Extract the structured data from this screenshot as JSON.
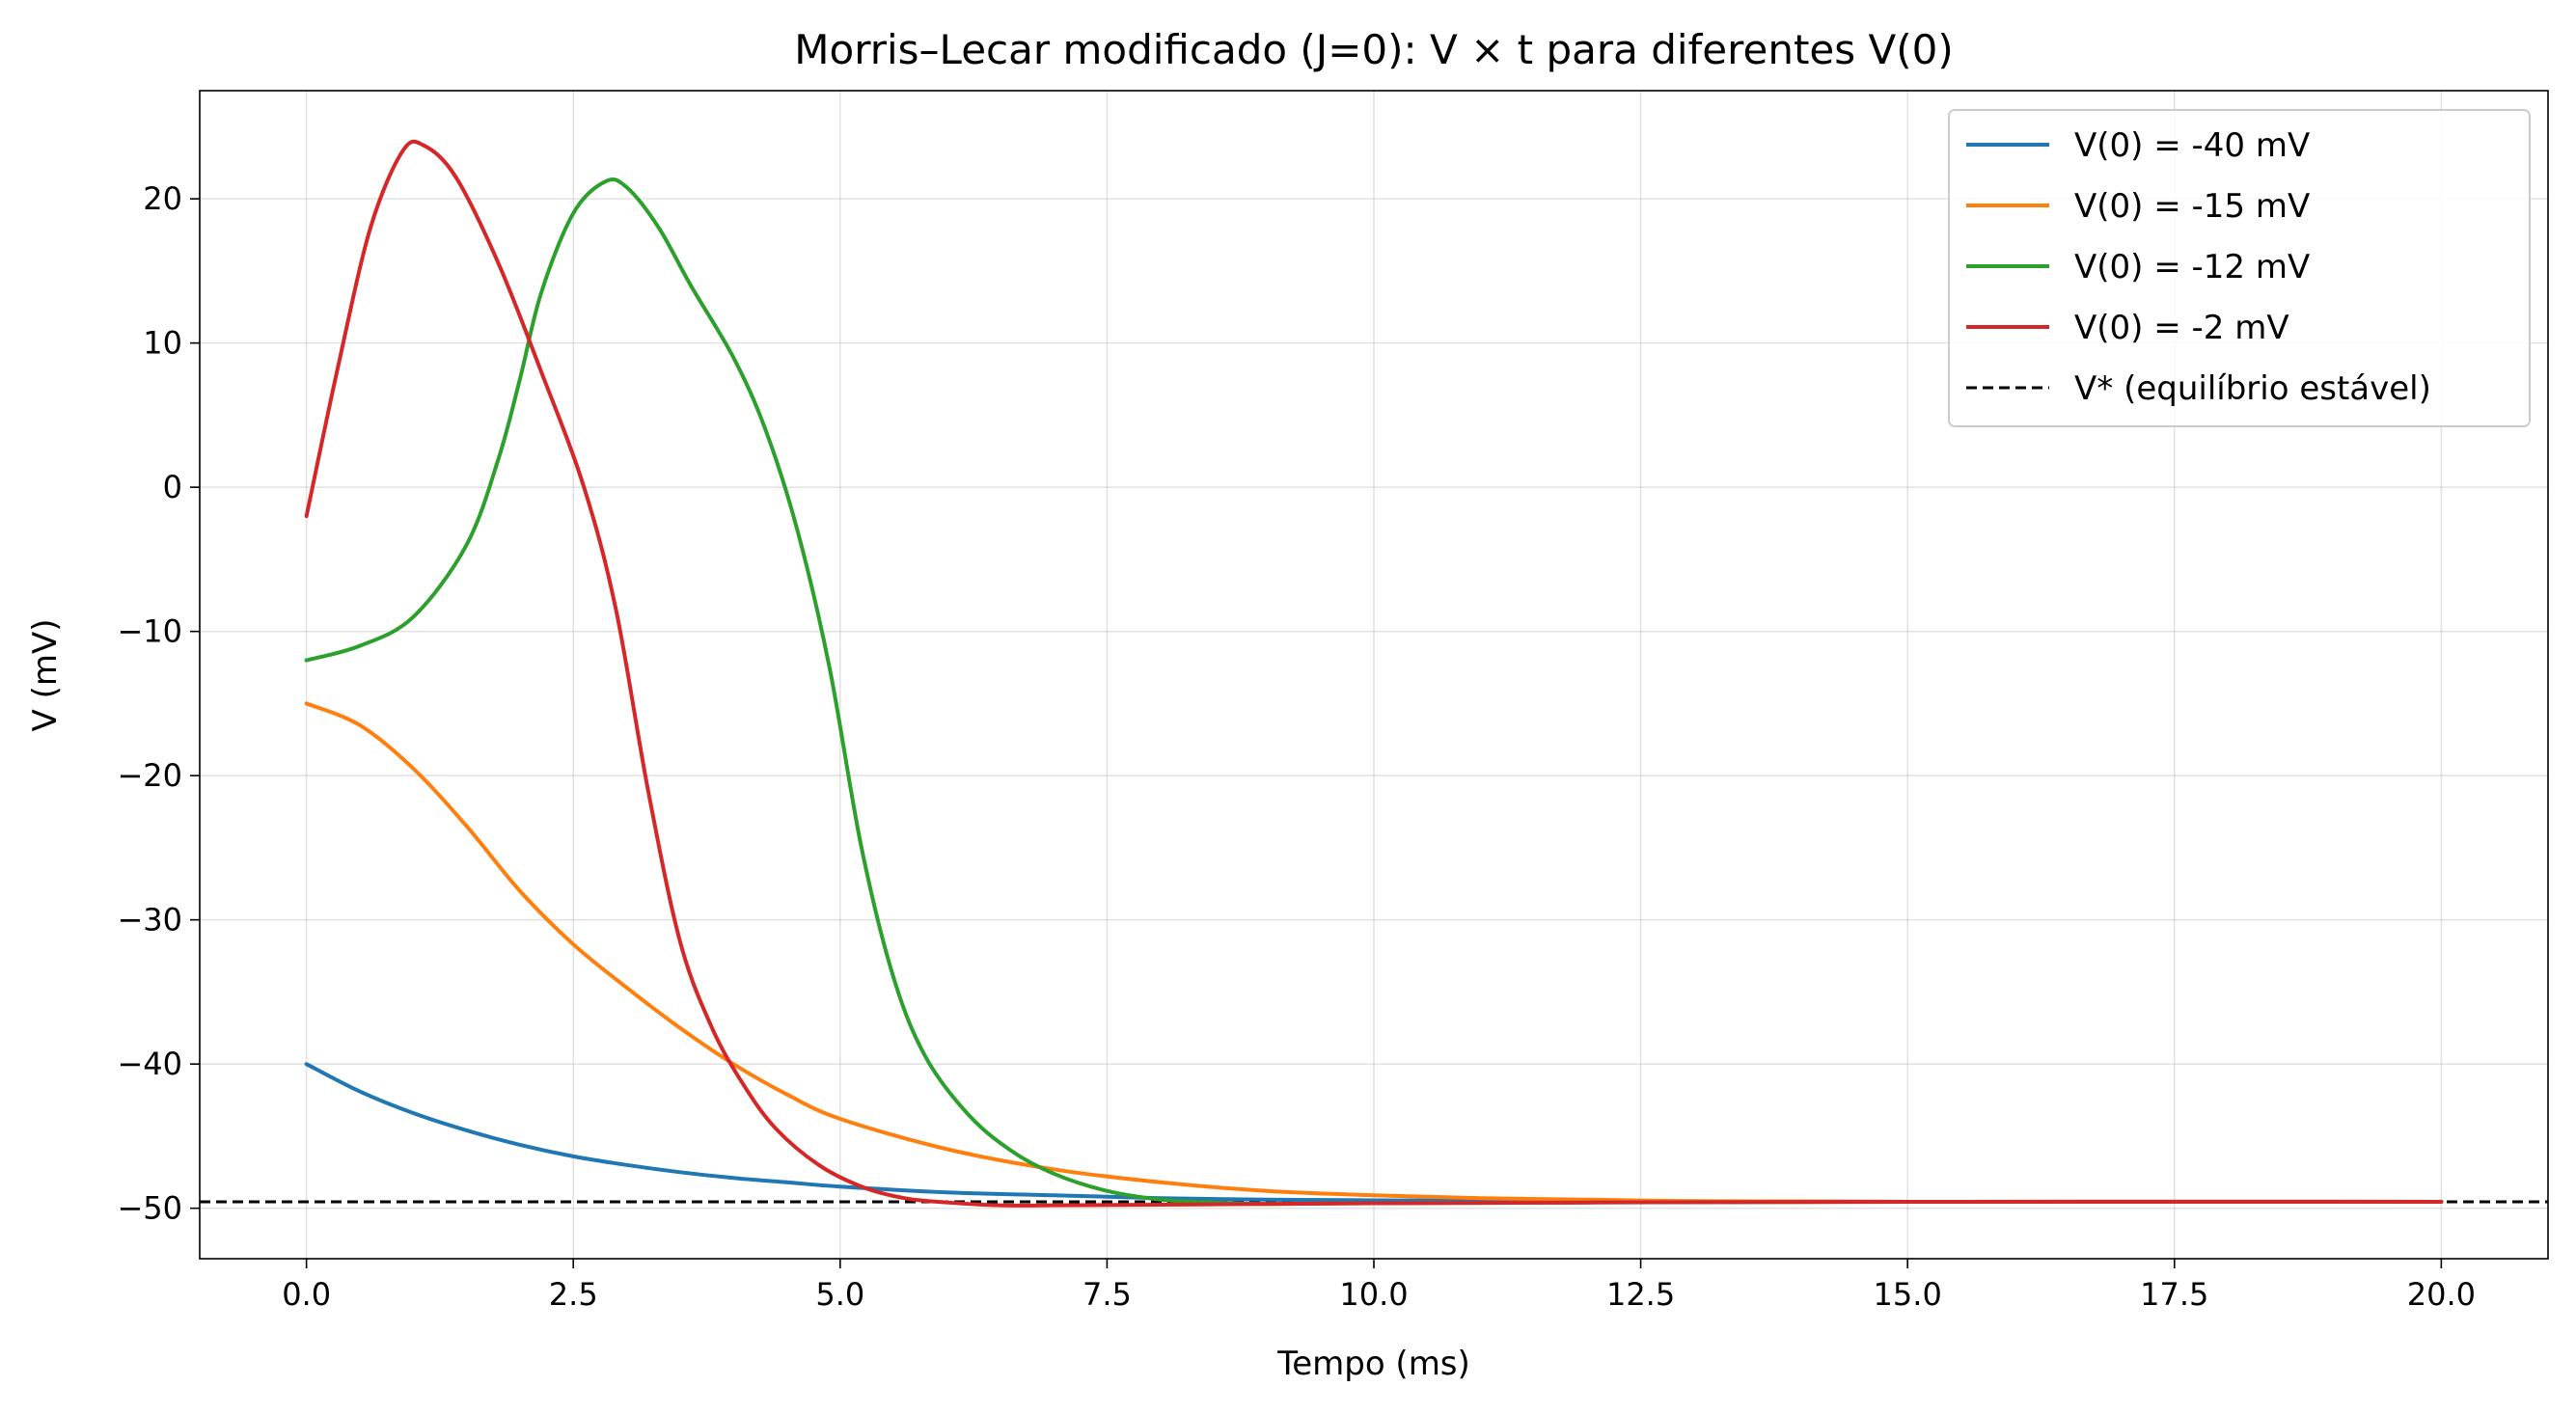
{
  "chart_data": {
    "type": "line",
    "title": "Morris–Lecar modificado (J=0): V × t para diferentes V(0)",
    "xlabel": "Tempo (ms)",
    "ylabel": "V (mV)",
    "xlim": [
      -1,
      21
    ],
    "ylim": [
      -53.5,
      27.5
    ],
    "xticks": [
      0,
      2.5,
      5,
      7.5,
      10,
      12.5,
      15,
      17.5,
      20
    ],
    "xtick_labels": [
      "0.0",
      "2.5",
      "5.0",
      "7.5",
      "10.0",
      "12.5",
      "15.0",
      "17.5",
      "20.0"
    ],
    "yticks": [
      -50,
      -40,
      -30,
      -20,
      -10,
      0,
      10,
      20
    ],
    "ytick_labels": [
      "−50",
      "−40",
      "−30",
      "−20",
      "−10",
      "0",
      "10",
      "20"
    ],
    "grid": true,
    "legend_position": "top-right",
    "series": [
      {
        "name": "V(0) = -40 mV",
        "color": "#1f77b4",
        "x": [
          0,
          0.5,
          1,
          1.5,
          2,
          2.5,
          3,
          3.5,
          4,
          4.5,
          5,
          6,
          7,
          8,
          9,
          10,
          12,
          15,
          20
        ],
        "y": [
          -40,
          -41.9,
          -43.4,
          -44.6,
          -45.6,
          -46.4,
          -47.0,
          -47.5,
          -47.9,
          -48.2,
          -48.5,
          -48.9,
          -49.1,
          -49.3,
          -49.4,
          -49.45,
          -49.5,
          -49.55,
          -49.55
        ]
      },
      {
        "name": "V(0) = -15 mV",
        "color": "#ff7f0e",
        "x": [
          0,
          0.5,
          1,
          1.5,
          2,
          2.5,
          3,
          3.5,
          4,
          4.5,
          5,
          6,
          7,
          8,
          9,
          10,
          11,
          12,
          13,
          15,
          20
        ],
        "y": [
          -15,
          -16.5,
          -19.5,
          -23.5,
          -28.0,
          -31.7,
          -34.7,
          -37.5,
          -40.0,
          -42.1,
          -43.8,
          -45.9,
          -47.3,
          -48.2,
          -48.8,
          -49.1,
          -49.3,
          -49.4,
          -49.5,
          -49.55,
          -49.55
        ]
      },
      {
        "name": "V(0) = -12 mV",
        "color": "#2ca02c",
        "x": [
          0,
          0.5,
          1,
          1.5,
          1.8,
          2,
          2.2,
          2.5,
          2.8,
          3.0,
          3.3,
          3.6,
          4.0,
          4.3,
          4.6,
          4.9,
          5.2,
          5.5,
          5.8,
          6.2,
          6.6,
          7.0,
          7.5,
          8.0,
          8.5,
          9,
          10,
          12,
          15,
          20
        ],
        "y": [
          -12,
          -11.0,
          -9.0,
          -4.0,
          2.0,
          7.5,
          13.5,
          19.0,
          21.2,
          20.8,
          18.0,
          14.0,
          9.0,
          4.0,
          -3.0,
          -12.5,
          -25.0,
          -34.0,
          -39.5,
          -43.5,
          -46.0,
          -47.6,
          -48.8,
          -49.4,
          -49.6,
          -49.7,
          -49.65,
          -49.6,
          -49.55,
          -49.55
        ]
      },
      {
        "name": "V(0) = -2 mV",
        "color": "#d62728",
        "x": [
          0,
          0.3,
          0.6,
          0.9,
          1.1,
          1.4,
          1.8,
          2.2,
          2.6,
          2.9,
          3.2,
          3.5,
          3.8,
          4.1,
          4.4,
          4.8,
          5.2,
          5.6,
          6.0,
          6.5,
          7,
          8,
          9,
          10,
          12,
          15,
          20
        ],
        "y": [
          -2,
          8.5,
          18.0,
          23.3,
          23.7,
          21.5,
          15.5,
          8.0,
          0,
          -8.5,
          -21.0,
          -31.5,
          -37.5,
          -41.5,
          -44.5,
          -47.0,
          -48.5,
          -49.3,
          -49.6,
          -49.8,
          -49.8,
          -49.75,
          -49.7,
          -49.65,
          -49.6,
          -49.55,
          -49.55
        ]
      }
    ],
    "reference_line": {
      "name": "V* (equilíbrio estável)",
      "y": -49.55,
      "color": "#000000",
      "style": "dashed"
    }
  }
}
